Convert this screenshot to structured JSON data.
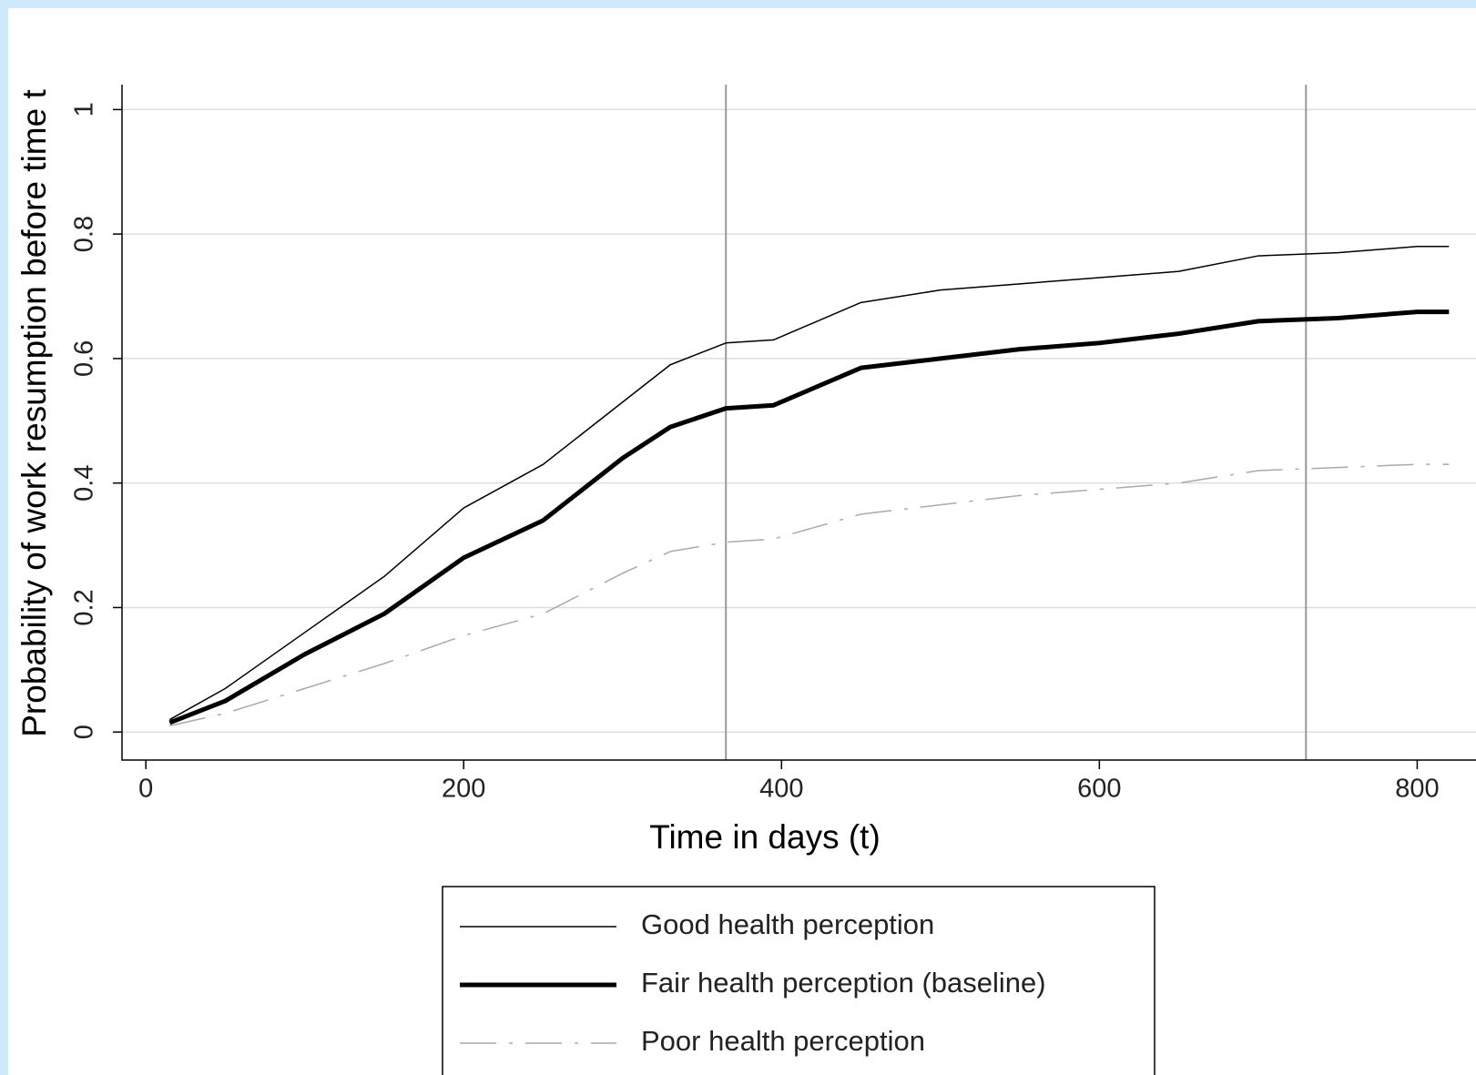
{
  "chart_data": {
    "type": "line",
    "x_label": "Time in days (t)",
    "y_label": "Probability of work resumption before time t",
    "x": [
      15,
      50,
      100,
      150,
      200,
      250,
      300,
      330,
      365,
      395,
      450,
      500,
      550,
      600,
      650,
      700,
      750,
      800,
      820
    ],
    "series": [
      {
        "name": "Good health perception",
        "color": "#000000",
        "linewidth": 1.5,
        "linestyle": "solid",
        "values": [
          0.02,
          0.07,
          0.16,
          0.25,
          0.36,
          0.43,
          0.53,
          0.59,
          0.625,
          0.63,
          0.69,
          0.71,
          0.72,
          0.73,
          0.74,
          0.765,
          0.77,
          0.78,
          0.78
        ]
      },
      {
        "name": "Fair health perception (baseline)",
        "color": "#000000",
        "linewidth": 5,
        "linestyle": "solid",
        "values": [
          0.015,
          0.05,
          0.125,
          0.19,
          0.28,
          0.34,
          0.44,
          0.49,
          0.52,
          0.525,
          0.585,
          0.6,
          0.615,
          0.625,
          0.64,
          0.66,
          0.665,
          0.675,
          0.675
        ]
      },
      {
        "name": "Poor health perception",
        "color": "#aaaaaa",
        "linewidth": 1.5,
        "linestyle": "dashdot",
        "values": [
          0.01,
          0.03,
          0.07,
          0.11,
          0.155,
          0.19,
          0.255,
          0.29,
          0.305,
          0.31,
          0.35,
          0.365,
          0.38,
          0.39,
          0.4,
          0.42,
          0.425,
          0.43,
          0.43
        ]
      }
    ],
    "vlines": [
      365,
      730
    ],
    "vline_color": "#999999",
    "xlim": [
      -15,
      837
    ],
    "xticks": [
      0,
      200,
      400,
      600,
      800
    ],
    "ylim": [
      -0.045,
      1.04
    ],
    "yticks": [
      0,
      0.2,
      0.4,
      0.6,
      0.8,
      1
    ],
    "grid": true
  }
}
